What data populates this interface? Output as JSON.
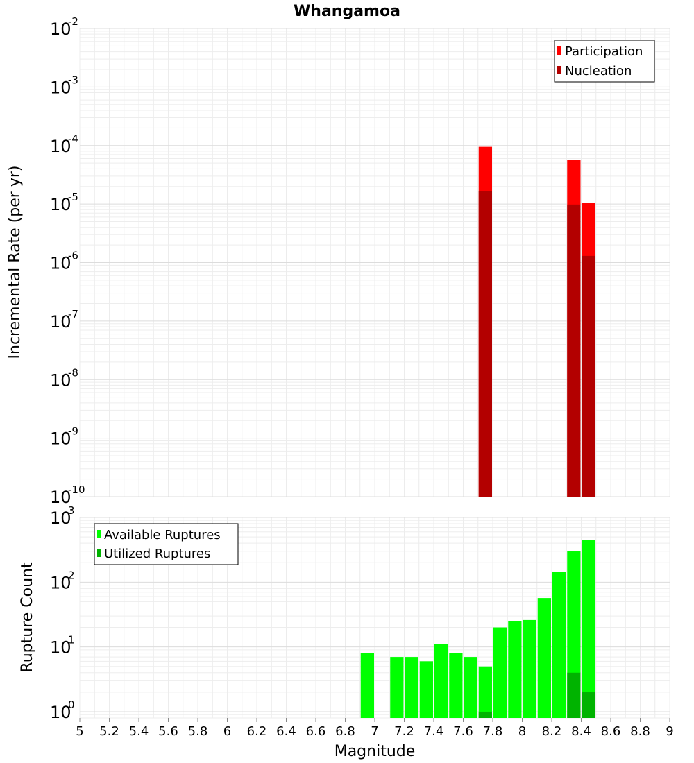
{
  "chart_data": [
    {
      "type": "bar",
      "title": "Whangamoa",
      "ylabel": "Incremental Rate (per yr)",
      "xlabel": "",
      "yscale": "log",
      "ylim": [
        1e-10,
        0.01
      ],
      "xlim": [
        5,
        9
      ],
      "bin_width": 0.1,
      "x_ticks": [
        "5",
        "5.2",
        "5.4",
        "5.6",
        "5.8",
        "6",
        "6.2",
        "6.4",
        "6.6",
        "6.8",
        "7",
        "7.2",
        "7.4",
        "7.6",
        "7.8",
        "8",
        "8.2",
        "8.4",
        "8.6",
        "8.8",
        "9"
      ],
      "y_ticks": [
        {
          "base": "10",
          "exp": "-10"
        },
        {
          "base": "10",
          "exp": "-9"
        },
        {
          "base": "10",
          "exp": "-8"
        },
        {
          "base": "10",
          "exp": "-7"
        },
        {
          "base": "10",
          "exp": "-6"
        },
        {
          "base": "10",
          "exp": "-5"
        },
        {
          "base": "10",
          "exp": "-4"
        },
        {
          "base": "10",
          "exp": "-3"
        },
        {
          "base": "10",
          "exp": "-2"
        }
      ],
      "grid": true,
      "legend_position": "top-right",
      "series": [
        {
          "name": "Participation",
          "color": "#ff0000",
          "x": [
            7.75,
            8.35,
            8.45
          ],
          "values": [
            9.5e-05,
            5.7e-05,
            1.05e-05
          ]
        },
        {
          "name": "Nucleation",
          "color": "#b30000",
          "x": [
            7.75,
            8.35,
            8.45
          ],
          "values": [
            1.65e-05,
            9.8e-06,
            1.3e-06
          ]
        }
      ]
    },
    {
      "type": "bar",
      "title": "",
      "ylabel": "Rupture Count",
      "xlabel": "Magnitude",
      "yscale": "log",
      "ylim": [
        0.8,
        1000
      ],
      "xlim": [
        5,
        9
      ],
      "bin_width": 0.1,
      "y_ticks": [
        {
          "base": "10",
          "exp": "0"
        },
        {
          "base": "10",
          "exp": "1"
        },
        {
          "base": "10",
          "exp": "2"
        },
        {
          "base": "10",
          "exp": "3"
        }
      ],
      "grid": true,
      "legend_position": "top-left",
      "series": [
        {
          "name": "Available Ruptures",
          "color": "#00ff00",
          "x": [
            6.95,
            7.15,
            7.25,
            7.35,
            7.45,
            7.55,
            7.65,
            7.75,
            7.85,
            7.95,
            8.05,
            8.15,
            8.25,
            8.35,
            8.45
          ],
          "values": [
            8,
            7,
            7,
            6,
            11,
            8,
            7,
            5,
            20,
            25,
            26,
            57,
            145,
            300,
            450
          ]
        },
        {
          "name": "Utilized Ruptures",
          "color": "#00b300",
          "x": [
            7.75,
            8.35,
            8.45
          ],
          "values": [
            1,
            4,
            2
          ]
        }
      ]
    }
  ]
}
